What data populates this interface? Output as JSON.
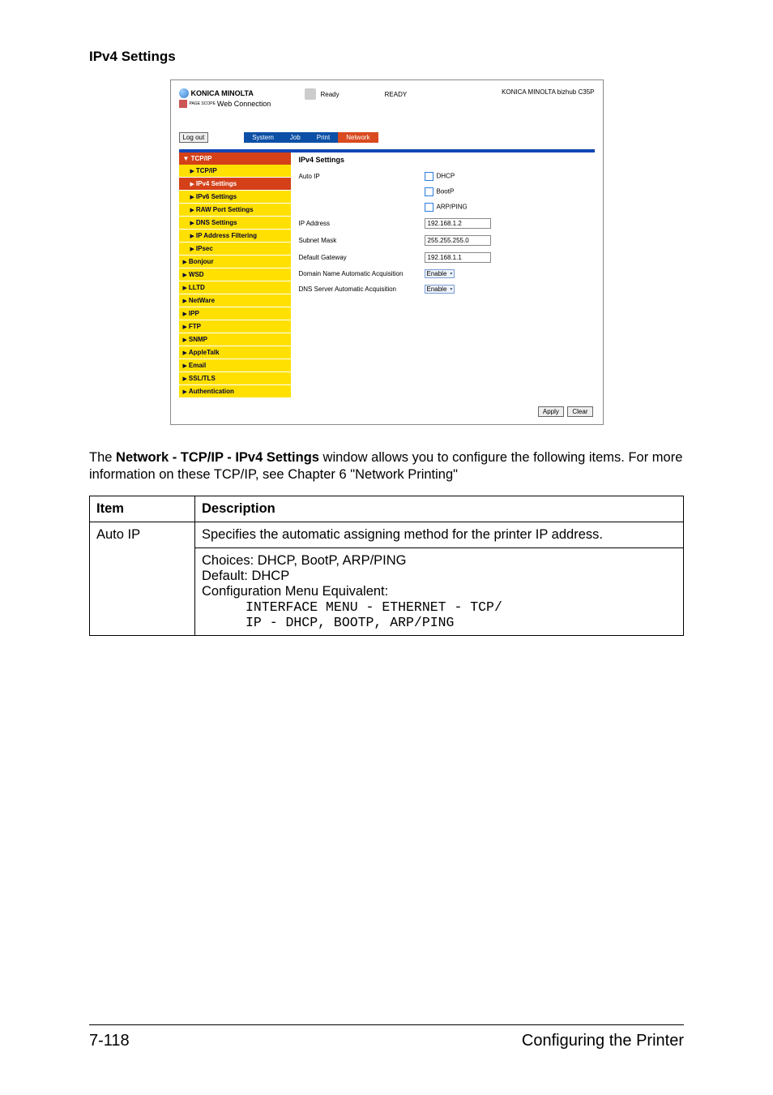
{
  "page": {
    "section_title": "IPv4 Settings",
    "desc_pre": "The ",
    "desc_bold": "Network - TCP/IP - IPv4 Settings",
    "desc_post": " window allows you to configure the following items. For more information on these TCP/IP, see Chapter 6 \"Network Printing\"",
    "footer_left": "7-118",
    "footer_right": "Configuring the Printer"
  },
  "screenshot": {
    "brand": "KONICA MINOLTA",
    "webconn_prefix": "PAGE SCOPE",
    "webconn": "Web Connection",
    "status_label": "Ready",
    "status_text": "READY",
    "device": "KONICA MINOLTA bizhub C35P",
    "logout": "Log out",
    "tabs": {
      "system": "System",
      "job": "Job",
      "print": "Print",
      "network": "Network"
    },
    "sidebar": {
      "head": "▼ TCP/IP",
      "items": [
        {
          "label": "TCP/IP",
          "sub": true,
          "sel": false
        },
        {
          "label": "IPv4 Settings",
          "sub": true,
          "sel": true
        },
        {
          "label": "IPv6 Settings",
          "sub": true,
          "sel": false
        },
        {
          "label": "RAW Port Settings",
          "sub": true,
          "sel": false
        },
        {
          "label": "DNS Settings",
          "sub": true,
          "sel": false
        },
        {
          "label": "IP Address Filtering",
          "sub": true,
          "sel": false
        },
        {
          "label": "IPsec",
          "sub": true,
          "sel": false
        },
        {
          "label": "Bonjour",
          "sub": false,
          "sel": false
        },
        {
          "label": "WSD",
          "sub": false,
          "sel": false
        },
        {
          "label": "LLTD",
          "sub": false,
          "sel": false
        },
        {
          "label": "NetWare",
          "sub": false,
          "sel": false
        },
        {
          "label": "IPP",
          "sub": false,
          "sel": false
        },
        {
          "label": "FTP",
          "sub": false,
          "sel": false
        },
        {
          "label": "SNMP",
          "sub": false,
          "sel": false
        },
        {
          "label": "AppleTalk",
          "sub": false,
          "sel": false
        },
        {
          "label": "Email",
          "sub": false,
          "sel": false
        },
        {
          "label": "SSL/TLS",
          "sub": false,
          "sel": false
        },
        {
          "label": "Authentication",
          "sub": false,
          "sel": false
        }
      ]
    },
    "content": {
      "title": "IPv4 Settings",
      "auto_ip": "Auto IP",
      "chk_dhcp": "DHCP",
      "chk_bootp": "BootP",
      "chk_arp": "ARP/PING",
      "ip_label": "IP Address",
      "ip_val": "192.168.1.2",
      "subnet_label": "Subnet Mask",
      "subnet_val": "255.255.255.0",
      "gw_label": "Default Gateway",
      "gw_val": "192.168.1.1",
      "dn_label": "Domain Name Automatic Acquisition",
      "dn_val": "Enable",
      "dns_label": "DNS Server Automatic Acquisition",
      "dns_val": "Enable",
      "apply": "Apply",
      "clear": "Clear"
    }
  },
  "table": {
    "h_item": "Item",
    "h_desc": "Description",
    "row1_item": "Auto IP",
    "row1_desc": "Specifies the automatic assigning method for the printer IP address.",
    "row2_l1": "Choices: DHCP, BootP, ARP/PING",
    "row2_l2": "Default:  DHCP",
    "row2_l3": "Configuration Menu Equivalent:",
    "row2_l4": "INTERFACE MENU - ETHERNET - TCP/",
    "row2_l5": "IP - DHCP, BOOTP, ARP/PING"
  }
}
